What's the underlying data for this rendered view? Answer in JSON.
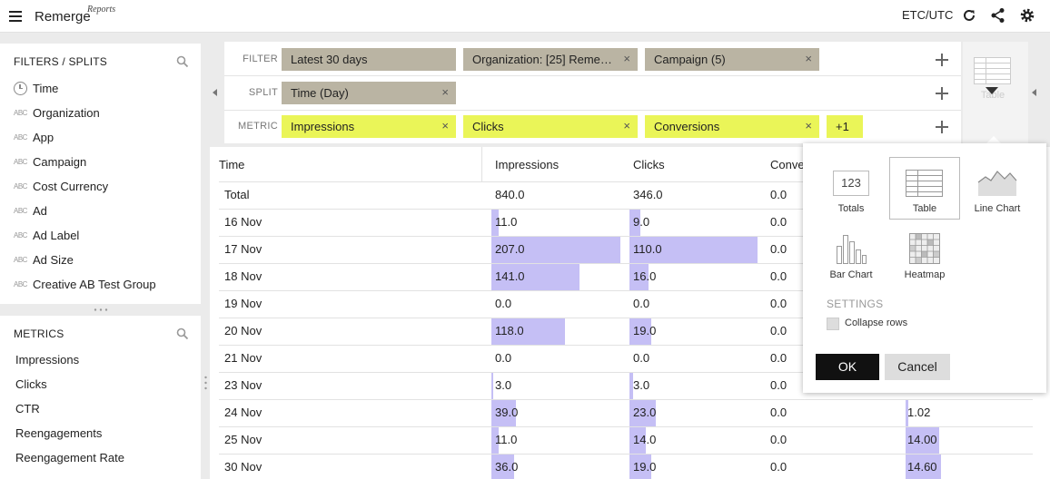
{
  "header": {
    "logo": "Remerge",
    "logo_sub": "Reports",
    "timezone": "ETC/UTC",
    "icons": [
      "menu-icon",
      "refresh-icon",
      "share-icon",
      "gear-icon"
    ]
  },
  "filters_panel": {
    "title": "FILTERS / SPLITS",
    "items": [
      {
        "label": "Time",
        "icon": "clock-icon"
      },
      {
        "label": "Organization",
        "icon": "abc-icon"
      },
      {
        "label": "App",
        "icon": "abc-icon"
      },
      {
        "label": "Campaign",
        "icon": "abc-icon"
      },
      {
        "label": "Cost Currency",
        "icon": "abc-icon"
      },
      {
        "label": "Ad",
        "icon": "abc-icon"
      },
      {
        "label": "Ad Label",
        "icon": "abc-icon"
      },
      {
        "label": "Ad Size",
        "icon": "abc-icon"
      },
      {
        "label": "Creative AB Test Group",
        "icon": "abc-icon"
      }
    ]
  },
  "metrics_panel": {
    "title": "METRICS",
    "items": [
      "Impressions",
      "Clicks",
      "CTR",
      "Reengagements",
      "Reengagement Rate"
    ]
  },
  "query": {
    "filter_label": "FILTER",
    "split_label": "SPLIT",
    "metric_label": "METRIC",
    "filters": [
      "Latest 30 days",
      "Organization: [25] Reme…",
      "Campaign (5)"
    ],
    "splits": [
      "Time (Day)"
    ],
    "metrics": [
      "Impressions",
      "Clicks",
      "Conversions"
    ],
    "metrics_more": "+1",
    "viz_label": "Table"
  },
  "table": {
    "columns": [
      "Time",
      "Impressions",
      "Clicks",
      "Conve"
    ],
    "total": {
      "label": "Total",
      "impressions": "840.0",
      "clicks": "346.0",
      "conversions": "0.0"
    },
    "rows": [
      {
        "time": "16 Nov",
        "impressions": "11.0",
        "clicks": "9.0",
        "conversions": "0.0",
        "extra": ""
      },
      {
        "time": "17 Nov",
        "impressions": "207.0",
        "clicks": "110.0",
        "conversions": "0.0",
        "extra": ""
      },
      {
        "time": "18 Nov",
        "impressions": "141.0",
        "clicks": "16.0",
        "conversions": "0.0",
        "extra": ""
      },
      {
        "time": "19 Nov",
        "impressions": "0.0",
        "clicks": "0.0",
        "conversions": "0.0",
        "extra": ""
      },
      {
        "time": "20 Nov",
        "impressions": "118.0",
        "clicks": "19.0",
        "conversions": "0.0",
        "extra": ""
      },
      {
        "time": "21 Nov",
        "impressions": "0.0",
        "clicks": "0.0",
        "conversions": "0.0",
        "extra": ""
      },
      {
        "time": "23 Nov",
        "impressions": "3.0",
        "clicks": "3.0",
        "conversions": "0.0",
        "extra": ""
      },
      {
        "time": "24 Nov",
        "impressions": "39.0",
        "clicks": "23.0",
        "conversions": "0.0",
        "extra": "1.02"
      },
      {
        "time": "25 Nov",
        "impressions": "11.0",
        "clicks": "14.0",
        "conversions": "0.0",
        "extra": "14.00"
      },
      {
        "time": "30 Nov",
        "impressions": "36.0",
        "clicks": "19.0",
        "conversions": "0.0",
        "extra": "14.60"
      }
    ]
  },
  "viz_popover": {
    "options": [
      {
        "label": "Totals",
        "glyph": "123",
        "selected": false
      },
      {
        "label": "Table",
        "selected": true
      },
      {
        "label": "Line Chart",
        "selected": false
      },
      {
        "label": "Bar Chart",
        "selected": false
      },
      {
        "label": "Heatmap",
        "selected": false
      }
    ],
    "settings_label": "SETTINGS",
    "collapse_rows": "Collapse rows",
    "ok": "OK",
    "cancel": "Cancel"
  }
}
